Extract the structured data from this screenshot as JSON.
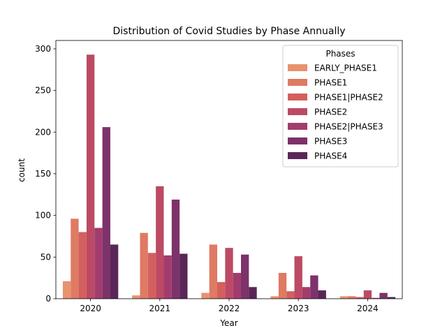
{
  "chart_data": {
    "type": "bar",
    "title": "Distribution of Covid Studies by Phase Annually",
    "xlabel": "Year",
    "ylabel": "count",
    "categories": [
      "2020",
      "2021",
      "2022",
      "2023",
      "2024"
    ],
    "ylim": [
      0,
      310
    ],
    "yticks": [
      0,
      50,
      100,
      150,
      200,
      250,
      300
    ],
    "grid": false,
    "legend": {
      "title": "Phases",
      "placement": "upper right"
    },
    "series": [
      {
        "name": "EARLY_PHASE1",
        "color": "#e8926e",
        "values": [
          21,
          4,
          7,
          3,
          3
        ]
      },
      {
        "name": "PHASE1",
        "color": "#df7a63",
        "values": [
          96,
          79,
          65,
          31,
          3
        ]
      },
      {
        "name": "PHASE1|PHASE2",
        "color": "#d3605e",
        "values": [
          80,
          55,
          20,
          9,
          2
        ]
      },
      {
        "name": "PHASE2",
        "color": "#bc4a64",
        "values": [
          293,
          135,
          61,
          51,
          10
        ]
      },
      {
        "name": "PHASE2|PHASE3",
        "color": "#a23c6e",
        "values": [
          85,
          52,
          31,
          14,
          1
        ]
      },
      {
        "name": "PHASE3",
        "color": "#7d326a",
        "values": [
          206,
          119,
          53,
          28,
          7
        ]
      },
      {
        "name": "PHASE4",
        "color": "#5a2658",
        "values": [
          65,
          54,
          14,
          10,
          2
        ]
      }
    ]
  }
}
